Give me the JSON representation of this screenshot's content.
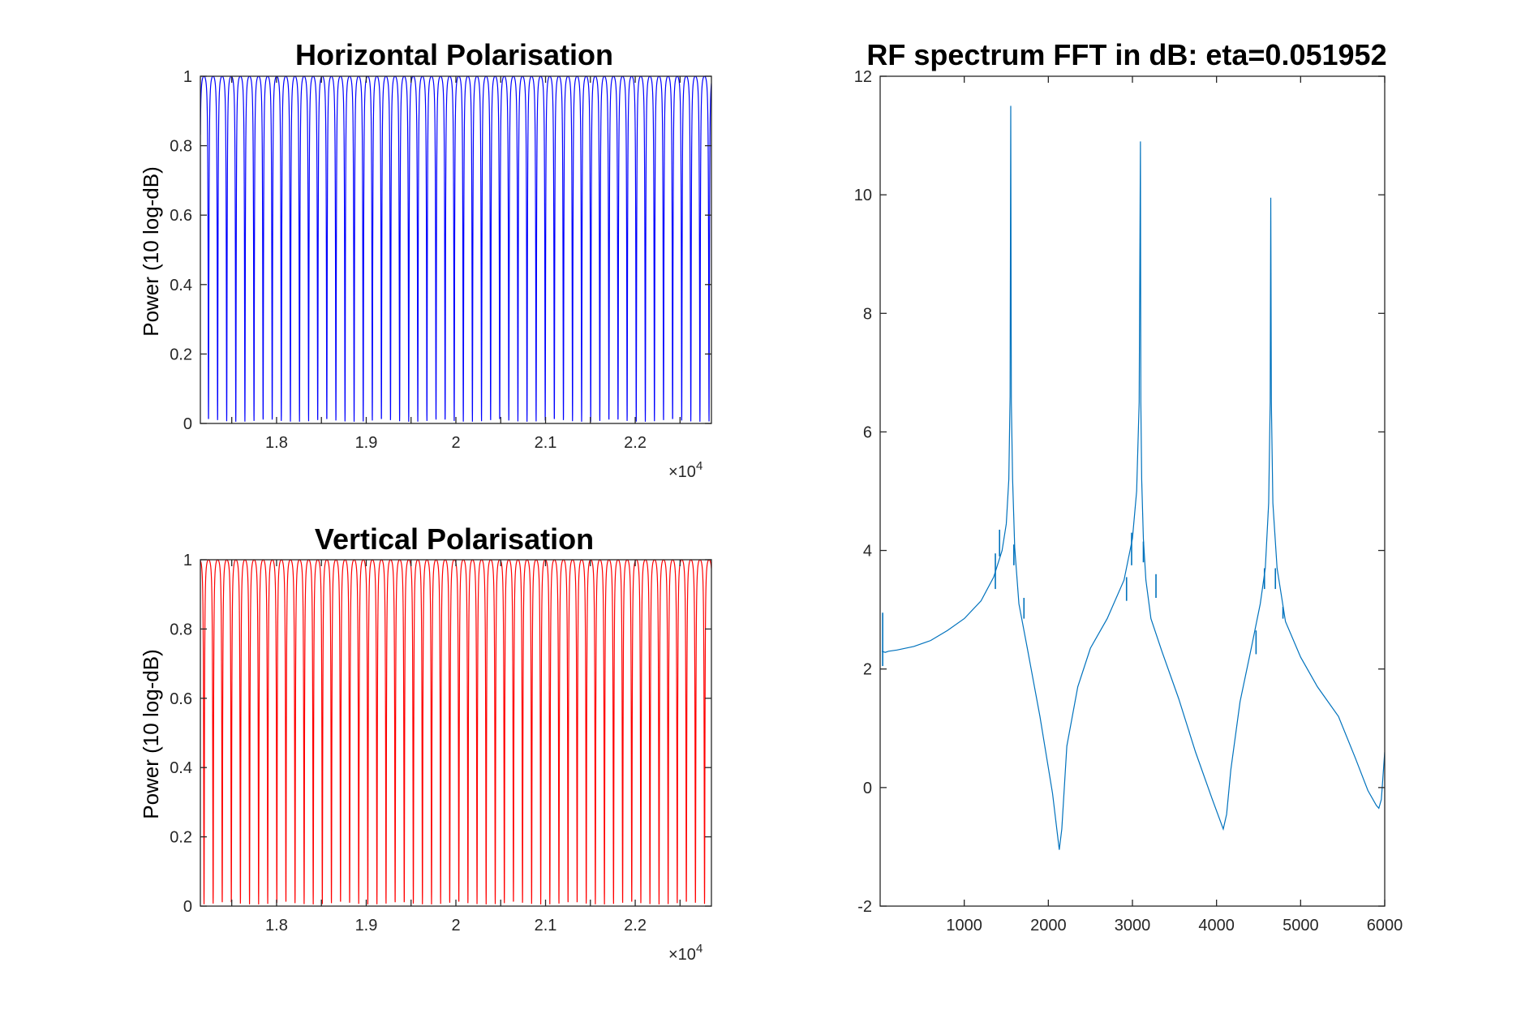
{
  "chart_data": [
    {
      "id": "horizontal",
      "type": "line",
      "title": "Horizontal Polarisation",
      "xlabel": "",
      "ylabel": "Power (10 log-dB)",
      "x_exponent_label": "×10",
      "x_exponent_power": "4",
      "xlim": [
        17150,
        22850
      ],
      "ylim": [
        0,
        1
      ],
      "xticks": [
        17500,
        18000,
        18500,
        19000,
        19500,
        20000,
        20500,
        21000,
        21500,
        22000,
        22500
      ],
      "xtick_labels": [
        "1.8",
        "1.9",
        "2",
        "2.1",
        "2.2"
      ],
      "xtick_label_values": [
        18000,
        19000,
        20000,
        21000,
        22000
      ],
      "yticks": [
        0,
        0.2,
        0.4,
        0.6,
        0.8,
        1
      ],
      "ytick_labels": [
        "0",
        "0.2",
        "0.4",
        "0.6",
        "0.8",
        "1"
      ],
      "series": [
        {
          "color": "#0000ff",
          "oscillation_period": 101.5,
          "phase_offset": 17190,
          "min": 0.005,
          "max": 1.0
        }
      ]
    },
    {
      "id": "vertical",
      "type": "line",
      "title": "Vertical Polarisation",
      "xlabel": "",
      "ylabel": "Power (10 log-dB)",
      "x_exponent_label": "×10",
      "x_exponent_power": "4",
      "xlim": [
        17150,
        22850
      ],
      "ylim": [
        0,
        1
      ],
      "xticks": [
        17500,
        18000,
        18500,
        19000,
        19500,
        20000,
        20500,
        21000,
        21500,
        22000,
        22500
      ],
      "xtick_labels": [
        "1.8",
        "1.9",
        "2",
        "2.1",
        "2.2"
      ],
      "xtick_label_values": [
        18000,
        19000,
        20000,
        21000,
        22000
      ],
      "yticks": [
        0,
        0.2,
        0.4,
        0.6,
        0.8,
        1
      ],
      "ytick_labels": [
        "0",
        "0.2",
        "0.4",
        "0.6",
        "0.8",
        "1"
      ],
      "series": [
        {
          "color": "#ff0000",
          "oscillation_period": 101.5,
          "phase_offset": 17140,
          "min": 0.005,
          "max": 1.0
        }
      ]
    },
    {
      "id": "rf",
      "type": "line",
      "title": "RF spectrum FFT in dB: eta=0.051952",
      "xlabel": "",
      "ylabel": "",
      "xlim": [
        0,
        6000
      ],
      "ylim": [
        -2,
        12
      ],
      "xticks": [
        1000,
        2000,
        3000,
        4000,
        5000,
        6000
      ],
      "xtick_labels": [
        "1000",
        "2000",
        "3000",
        "4000",
        "5000",
        "6000"
      ],
      "yticks": [
        -2,
        0,
        2,
        4,
        6,
        8,
        10,
        12
      ],
      "ytick_labels": [
        "-2",
        "0",
        "2",
        "4",
        "6",
        "8",
        "10",
        "12"
      ],
      "series": [
        {
          "color": "#0072bd",
          "x": [
            20,
            60,
            100,
            200,
            400,
            600,
            800,
            1000,
            1200,
            1350,
            1450,
            1500,
            1530,
            1545,
            1553,
            1560,
            1575,
            1600,
            1650,
            1750,
            1900,
            2050,
            2130,
            2160,
            2220,
            2350,
            2500,
            2700,
            2900,
            3000,
            3050,
            3080,
            3095,
            3100,
            3110,
            3130,
            3160,
            3220,
            3350,
            3550,
            3750,
            3950,
            4080,
            4120,
            4170,
            4280,
            4420,
            4520,
            4580,
            4620,
            4638,
            4645,
            4652,
            4670,
            4720,
            4820,
            5000,
            5200,
            5450,
            5650,
            5800,
            5900,
            5930,
            5960,
            6000
          ],
          "y": [
            2.3,
            2.28,
            2.3,
            2.32,
            2.38,
            2.48,
            2.65,
            2.85,
            3.15,
            3.55,
            4.0,
            4.45,
            5.2,
            6.6,
            11.5,
            6.5,
            5.2,
            4.05,
            3.1,
            2.35,
            1.2,
            -0.1,
            -1.05,
            -0.7,
            0.7,
            1.7,
            2.35,
            2.85,
            3.5,
            4.2,
            5.0,
            6.5,
            10.9,
            6.5,
            5.2,
            4.2,
            3.5,
            2.85,
            2.3,
            1.5,
            0.6,
            -0.2,
            -0.7,
            -0.45,
            0.3,
            1.45,
            2.4,
            3.1,
            3.7,
            4.8,
            6.5,
            9.95,
            6.5,
            4.8,
            3.7,
            2.8,
            2.2,
            1.7,
            1.2,
            0.5,
            -0.05,
            -0.3,
            -0.35,
            -0.2,
            0.6
          ]
        }
      ],
      "spikes": [
        {
          "x": 30,
          "y1": 2.05,
          "y2": 2.95
        },
        {
          "x": 1370,
          "y1": 3.35,
          "y2": 3.95
        },
        {
          "x": 1420,
          "y1": 3.9,
          "y2": 4.35
        },
        {
          "x": 1590,
          "y1": 3.75,
          "y2": 4.1
        },
        {
          "x": 1710,
          "y1": 2.85,
          "y2": 3.2
        },
        {
          "x": 2930,
          "y1": 3.15,
          "y2": 3.55
        },
        {
          "x": 2990,
          "y1": 3.75,
          "y2": 4.3
        },
        {
          "x": 3130,
          "y1": 3.8,
          "y2": 4.15
        },
        {
          "x": 3280,
          "y1": 3.2,
          "y2": 3.6
        },
        {
          "x": 4470,
          "y1": 2.25,
          "y2": 2.65
        },
        {
          "x": 4570,
          "y1": 3.35,
          "y2": 3.7
        },
        {
          "x": 4700,
          "y1": 3.35,
          "y2": 3.7
        },
        {
          "x": 4790,
          "y1": 2.85,
          "y2": 3.05
        }
      ]
    }
  ]
}
